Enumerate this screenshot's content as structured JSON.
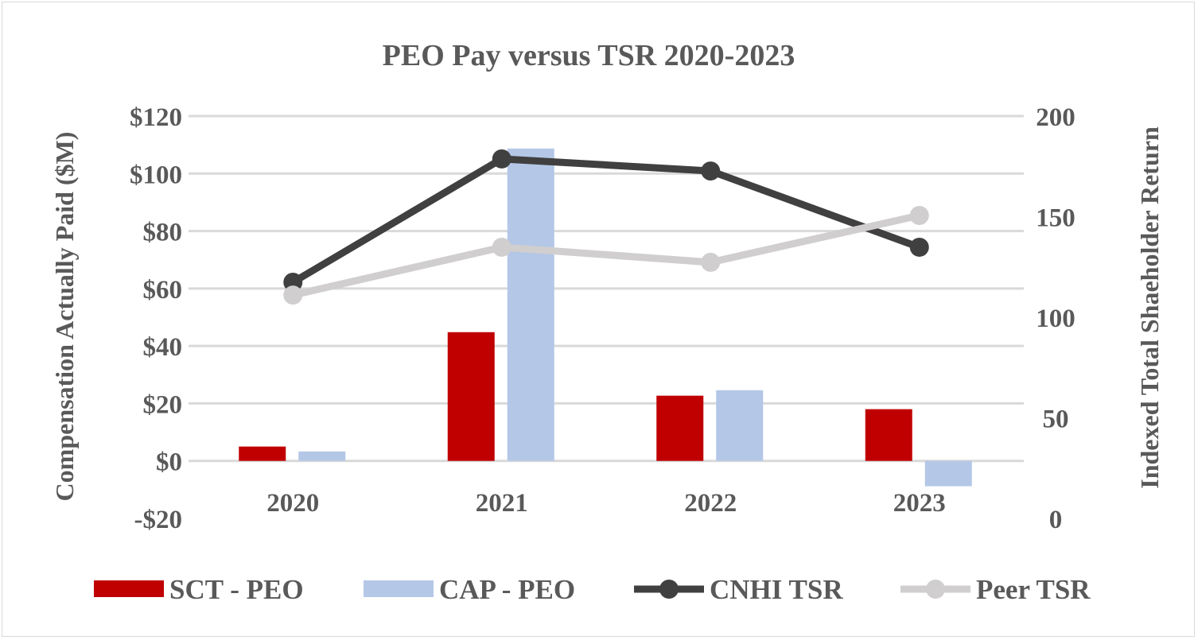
{
  "chart_data": {
    "type": "bar",
    "title": "PEO Pay versus TSR 2020-2023",
    "categories": [
      "2020",
      "2021",
      "2022",
      "2023"
    ],
    "ylabel": "Compensation Actually Paid ($M)",
    "y2label": "Indexed Total Shaeholder Return",
    "ylim": [
      -20,
      120
    ],
    "y_ticks": [
      -20,
      0,
      20,
      40,
      60,
      80,
      100,
      120
    ],
    "y_tick_labels": [
      "-$20",
      "$0",
      "$20",
      "$40",
      "$60",
      "$80",
      "$100",
      "$120"
    ],
    "y2lim": [
      0,
      200
    ],
    "y2_ticks": [
      0,
      50,
      100,
      150,
      200
    ],
    "y2_tick_labels": [
      "0",
      "50",
      "100",
      "150",
      "200"
    ],
    "grid": true,
    "legend_position": "bottom",
    "series": [
      {
        "name": "SCT - PEO",
        "kind": "bar",
        "axis": "left",
        "color": "#c00000",
        "values": [
          5.0,
          44.8,
          22.7,
          18.0
        ]
      },
      {
        "name": "CAP - PEO",
        "kind": "bar",
        "axis": "left",
        "color": "#b4c7e7",
        "values": [
          3.3,
          108.7,
          24.6,
          -8.8
        ]
      },
      {
        "name": "CNHI TSR",
        "kind": "line",
        "axis": "right",
        "color": "#404040",
        "values": [
          117.4,
          178.7,
          172.7,
          134.8
        ]
      },
      {
        "name": "Peer TSR",
        "kind": "line",
        "axis": "right",
        "color": "#d0cece",
        "values": [
          111.0,
          134.8,
          127.3,
          150.6
        ]
      }
    ]
  }
}
